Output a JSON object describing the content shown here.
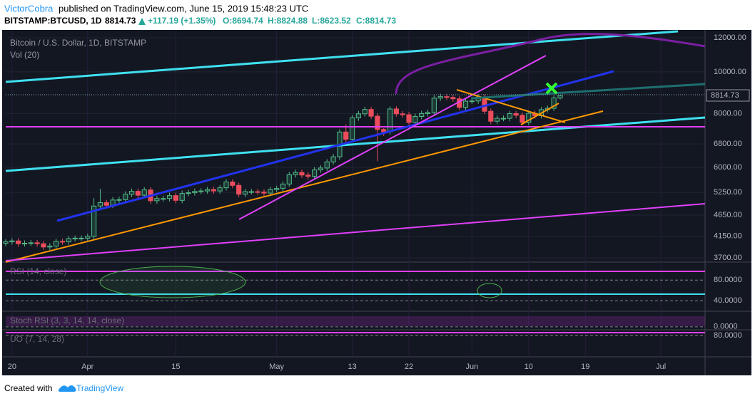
{
  "chart_data": {
    "type": "candlestick",
    "author": "VictorCobra",
    "published": "published on TradingView.com, June 15, 2019 15:48:23 UTC",
    "symbol": "BITSTAMP:BTCUSD, 1D",
    "last": "8814.73",
    "change": "+117.19 (+1.35%)",
    "ohlc_open": "O:8694.74",
    "ohlc_high": "H:8824.88",
    "ohlc_low": "L:8623.52",
    "ohlc_close": "C:8814.73",
    "title": "Bitcoin / U.S. Dollar, 1D, BITSTAMP",
    "volume_label": "Vol (20)",
    "price_label": {
      "value": 8814.73,
      "label": "8814.73"
    },
    "log": true,
    "up_color": "#53b987",
    "down_color": "#eb4d5c",
    "ylim": [
      3616,
      12513
    ],
    "yticks": [
      {
        "value": 12000,
        "label": "12000.00"
      },
      {
        "value": 10000,
        "label": "10000.00"
      },
      {
        "value": 8000,
        "label": "8000.00"
      },
      {
        "value": 6800,
        "label": "6800.00"
      },
      {
        "value": 6000,
        "label": "6000.00"
      },
      {
        "value": 5250,
        "label": "5250.00"
      },
      {
        "value": 4650,
        "label": "4650.00"
      },
      {
        "value": 4150,
        "label": "4150.00"
      },
      {
        "value": 3700,
        "label": "3700.00"
      }
    ],
    "categories": [
      null,
      "20",
      null,
      null,
      null,
      null,
      null,
      null,
      null,
      null,
      null,
      null,
      null,
      "Apr",
      null,
      null,
      null,
      null,
      null,
      null,
      null,
      null,
      null,
      null,
      null,
      null,
      null,
      "15",
      null,
      null,
      null,
      null,
      null,
      null,
      null,
      null,
      null,
      null,
      null,
      null,
      null,
      null,
      null,
      "May",
      null,
      null,
      null,
      null,
      null,
      null,
      null,
      null,
      null,
      null,
      null,
      "13",
      null,
      null,
      null,
      null,
      null,
      null,
      null,
      null,
      "22",
      null,
      null,
      null,
      null,
      null,
      null,
      null,
      null,
      null,
      "Jun",
      null,
      null,
      null,
      null,
      null,
      null,
      null,
      null,
      "10",
      null,
      null,
      null,
      null,
      null,
      null,
      null,
      null,
      "19",
      null,
      null,
      null,
      null,
      null,
      null,
      null,
      null,
      null,
      null,
      null,
      "Jul",
      null,
      null,
      null,
      null,
      null,
      null,
      null
    ],
    "open": [
      4000,
      4030,
      4050,
      3990,
      4000,
      4010,
      3990,
      3920,
      3940,
      4040,
      4030,
      4100,
      4110,
      4110,
      4150,
      4880,
      4970,
      4900,
      5040,
      5050,
      5200,
      5280,
      5170,
      5320,
      5020,
      5080,
      5080,
      5160,
      5030,
      5220,
      5240,
      5280,
      5290,
      5330,
      5290,
      5380,
      5550,
      5450,
      5200,
      5270,
      5270,
      5260,
      5230,
      5330,
      5360,
      5490,
      5770,
      5840,
      5760,
      5720,
      5920,
      5980,
      6180,
      6350,
      7250,
      6970,
      7820,
      7990,
      8180,
      7890,
      7350,
      7260,
      8200,
      7990,
      7950,
      7630,
      7880,
      8000,
      8050,
      8690,
      8760,
      8720,
      8660,
      8270,
      8550,
      8560,
      8740,
      8100,
      7680,
      7800,
      7800,
      8000,
      7930,
      7630,
      8010,
      7910,
      8170,
      8230,
      8694.74,
      null,
      null,
      null,
      null,
      null,
      null,
      null,
      null,
      null,
      null,
      null,
      null,
      null,
      null,
      null,
      null,
      null,
      null,
      null,
      null,
      null,
      null,
      null
    ],
    "high": [
      4090,
      4110,
      4110,
      4060,
      4070,
      4070,
      4050,
      4000,
      4100,
      4100,
      4160,
      4170,
      4170,
      4210,
      5090,
      5350,
      5040,
      5120,
      5130,
      5280,
      5360,
      5360,
      5400,
      5400,
      5160,
      5160,
      5240,
      5240,
      5300,
      5320,
      5360,
      5370,
      5410,
      5410,
      5460,
      5630,
      5630,
      5530,
      5350,
      5350,
      5350,
      5340,
      5410,
      5440,
      5570,
      5860,
      5930,
      5930,
      5850,
      6010,
      6070,
      6270,
      6450,
      7360,
      7550,
      7940,
      8110,
      8300,
      8300,
      8010,
      7400,
      8320,
      8320,
      8110,
      8070,
      8000,
      8120,
      8170,
      8820,
      8890,
      8890,
      8850,
      8790,
      8680,
      8690,
      8870,
      8870,
      8220,
      7920,
      7920,
      8120,
      8120,
      8050,
      8130,
      8130,
      8290,
      8350,
      8830,
      8824.88,
      null,
      null,
      null,
      null,
      null,
      null,
      null,
      null,
      null,
      null,
      null,
      null,
      null,
      null,
      null,
      null,
      null,
      null,
      null,
      null,
      null,
      null,
      null
    ],
    "low": [
      3940,
      3970,
      3930,
      3930,
      3940,
      3930,
      3860,
      3860,
      3880,
      3970,
      3970,
      4040,
      4050,
      4050,
      4090,
      4810,
      4830,
      4830,
      4960,
      4970,
      5120,
      5090,
      5090,
      4940,
      4940,
      5000,
      5000,
      4950,
      4950,
      5140,
      5160,
      5200,
      5210,
      5210,
      5210,
      5300,
      5370,
      5120,
      5120,
      5190,
      5180,
      5150,
      5150,
      5250,
      5280,
      5410,
      5680,
      5670,
      5630,
      5630,
      5830,
      5890,
      6090,
      6250,
      6870,
      6870,
      7700,
      7870,
      7770,
      6200,
      7100,
      7150,
      7870,
      7830,
      7520,
      7520,
      7760,
      7880,
      7930,
      8560,
      8590,
      8530,
      8150,
      8150,
      8420,
      8430,
      7980,
      7560,
      7560,
      7680,
      7680,
      7810,
      7520,
      7520,
      7790,
      7790,
      8050,
      8110,
      8623.52,
      null,
      null,
      null,
      null,
      null,
      null,
      null,
      null,
      null,
      null,
      null,
      null,
      null,
      null,
      null,
      null,
      null,
      null,
      null,
      null,
      null,
      null,
      null
    ],
    "close": [
      4030,
      4050,
      3990,
      4000,
      4010,
      3990,
      3920,
      3940,
      4040,
      4030,
      4100,
      4110,
      4110,
      4150,
      4880,
      4970,
      4900,
      5040,
      5050,
      5200,
      5280,
      5170,
      5320,
      5020,
      5080,
      5080,
      5160,
      5030,
      5220,
      5240,
      5280,
      5290,
      5330,
      5290,
      5380,
      5550,
      5450,
      5200,
      5270,
      5270,
      5260,
      5230,
      5330,
      5360,
      5490,
      5770,
      5840,
      5760,
      5720,
      5920,
      5980,
      6180,
      6350,
      7250,
      6970,
      7820,
      7990,
      8180,
      7890,
      7350,
      7260,
      8200,
      7990,
      7950,
      7630,
      7880,
      8000,
      8050,
      8690,
      8760,
      8720,
      8660,
      8270,
      8550,
      8560,
      8740,
      8100,
      7680,
      7800,
      7800,
      8000,
      7930,
      7630,
      8010,
      7910,
      8170,
      8230,
      8697.55,
      8814.73,
      null,
      null,
      null,
      null,
      null,
      null,
      null,
      null,
      null,
      null,
      null,
      null,
      null,
      null,
      null,
      null,
      null,
      null,
      null,
      null,
      null,
      null,
      null
    ],
    "indicators": [
      {
        "title": "RSI (14, close)",
        "ylim": [
          21,
          112
        ],
        "yticks": [
          {
            "value": 80,
            "label": "80.0000"
          },
          {
            "value": 40,
            "label": "40.0000"
          }
        ]
      },
      {
        "title": "Stoch RSI (3, 3, 14, 14, close)",
        "ylim": [
          -16,
          100
        ],
        "yticks": [
          {
            "value": 0,
            "label": "0.0000"
          }
        ]
      },
      {
        "title": "UO (7, 14, 28)",
        "ylim": [
          23,
          92
        ],
        "yticks": [
          {
            "value": 80,
            "label": "80.0000"
          }
        ]
      }
    ],
    "footer": "Created with",
    "brand": "TradingView"
  }
}
